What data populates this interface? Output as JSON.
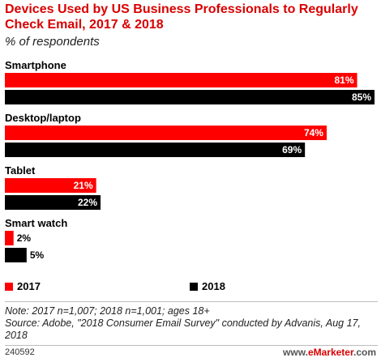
{
  "header": {
    "title": "Devices Used by US Business Professionals to Regularly Check Email, 2017 & 2018",
    "subtitle": "% of respondents"
  },
  "chart_data": {
    "type": "bar",
    "orientation": "horizontal",
    "categories": [
      "Smartphone",
      "Desktop/laptop",
      "Tablet",
      "Smart watch"
    ],
    "series": [
      {
        "name": "2017",
        "values": [
          81,
          74,
          21,
          2
        ],
        "color": "#ff0000"
      },
      {
        "name": "2018",
        "values": [
          85,
          69,
          22,
          5
        ],
        "color": "#000000"
      }
    ],
    "value_suffix": "%",
    "xlim": [
      0,
      85
    ],
    "grid": false,
    "legend_position": "bottom"
  },
  "legend": {
    "items": [
      {
        "label": "2017",
        "color": "#ff0000"
      },
      {
        "label": "2018",
        "color": "#000000"
      }
    ]
  },
  "footer": {
    "note": "Note: 2017 n=1,007; 2018 n=1,001; ages 18+\nSource: Adobe, \"2018 Consumer Email Survey\" conducted by Advanis, Aug 17, 2018",
    "chart_id": "240592",
    "brand_prefix": "www.",
    "brand_name": "eMarketer",
    "brand_suffix": ".com"
  }
}
